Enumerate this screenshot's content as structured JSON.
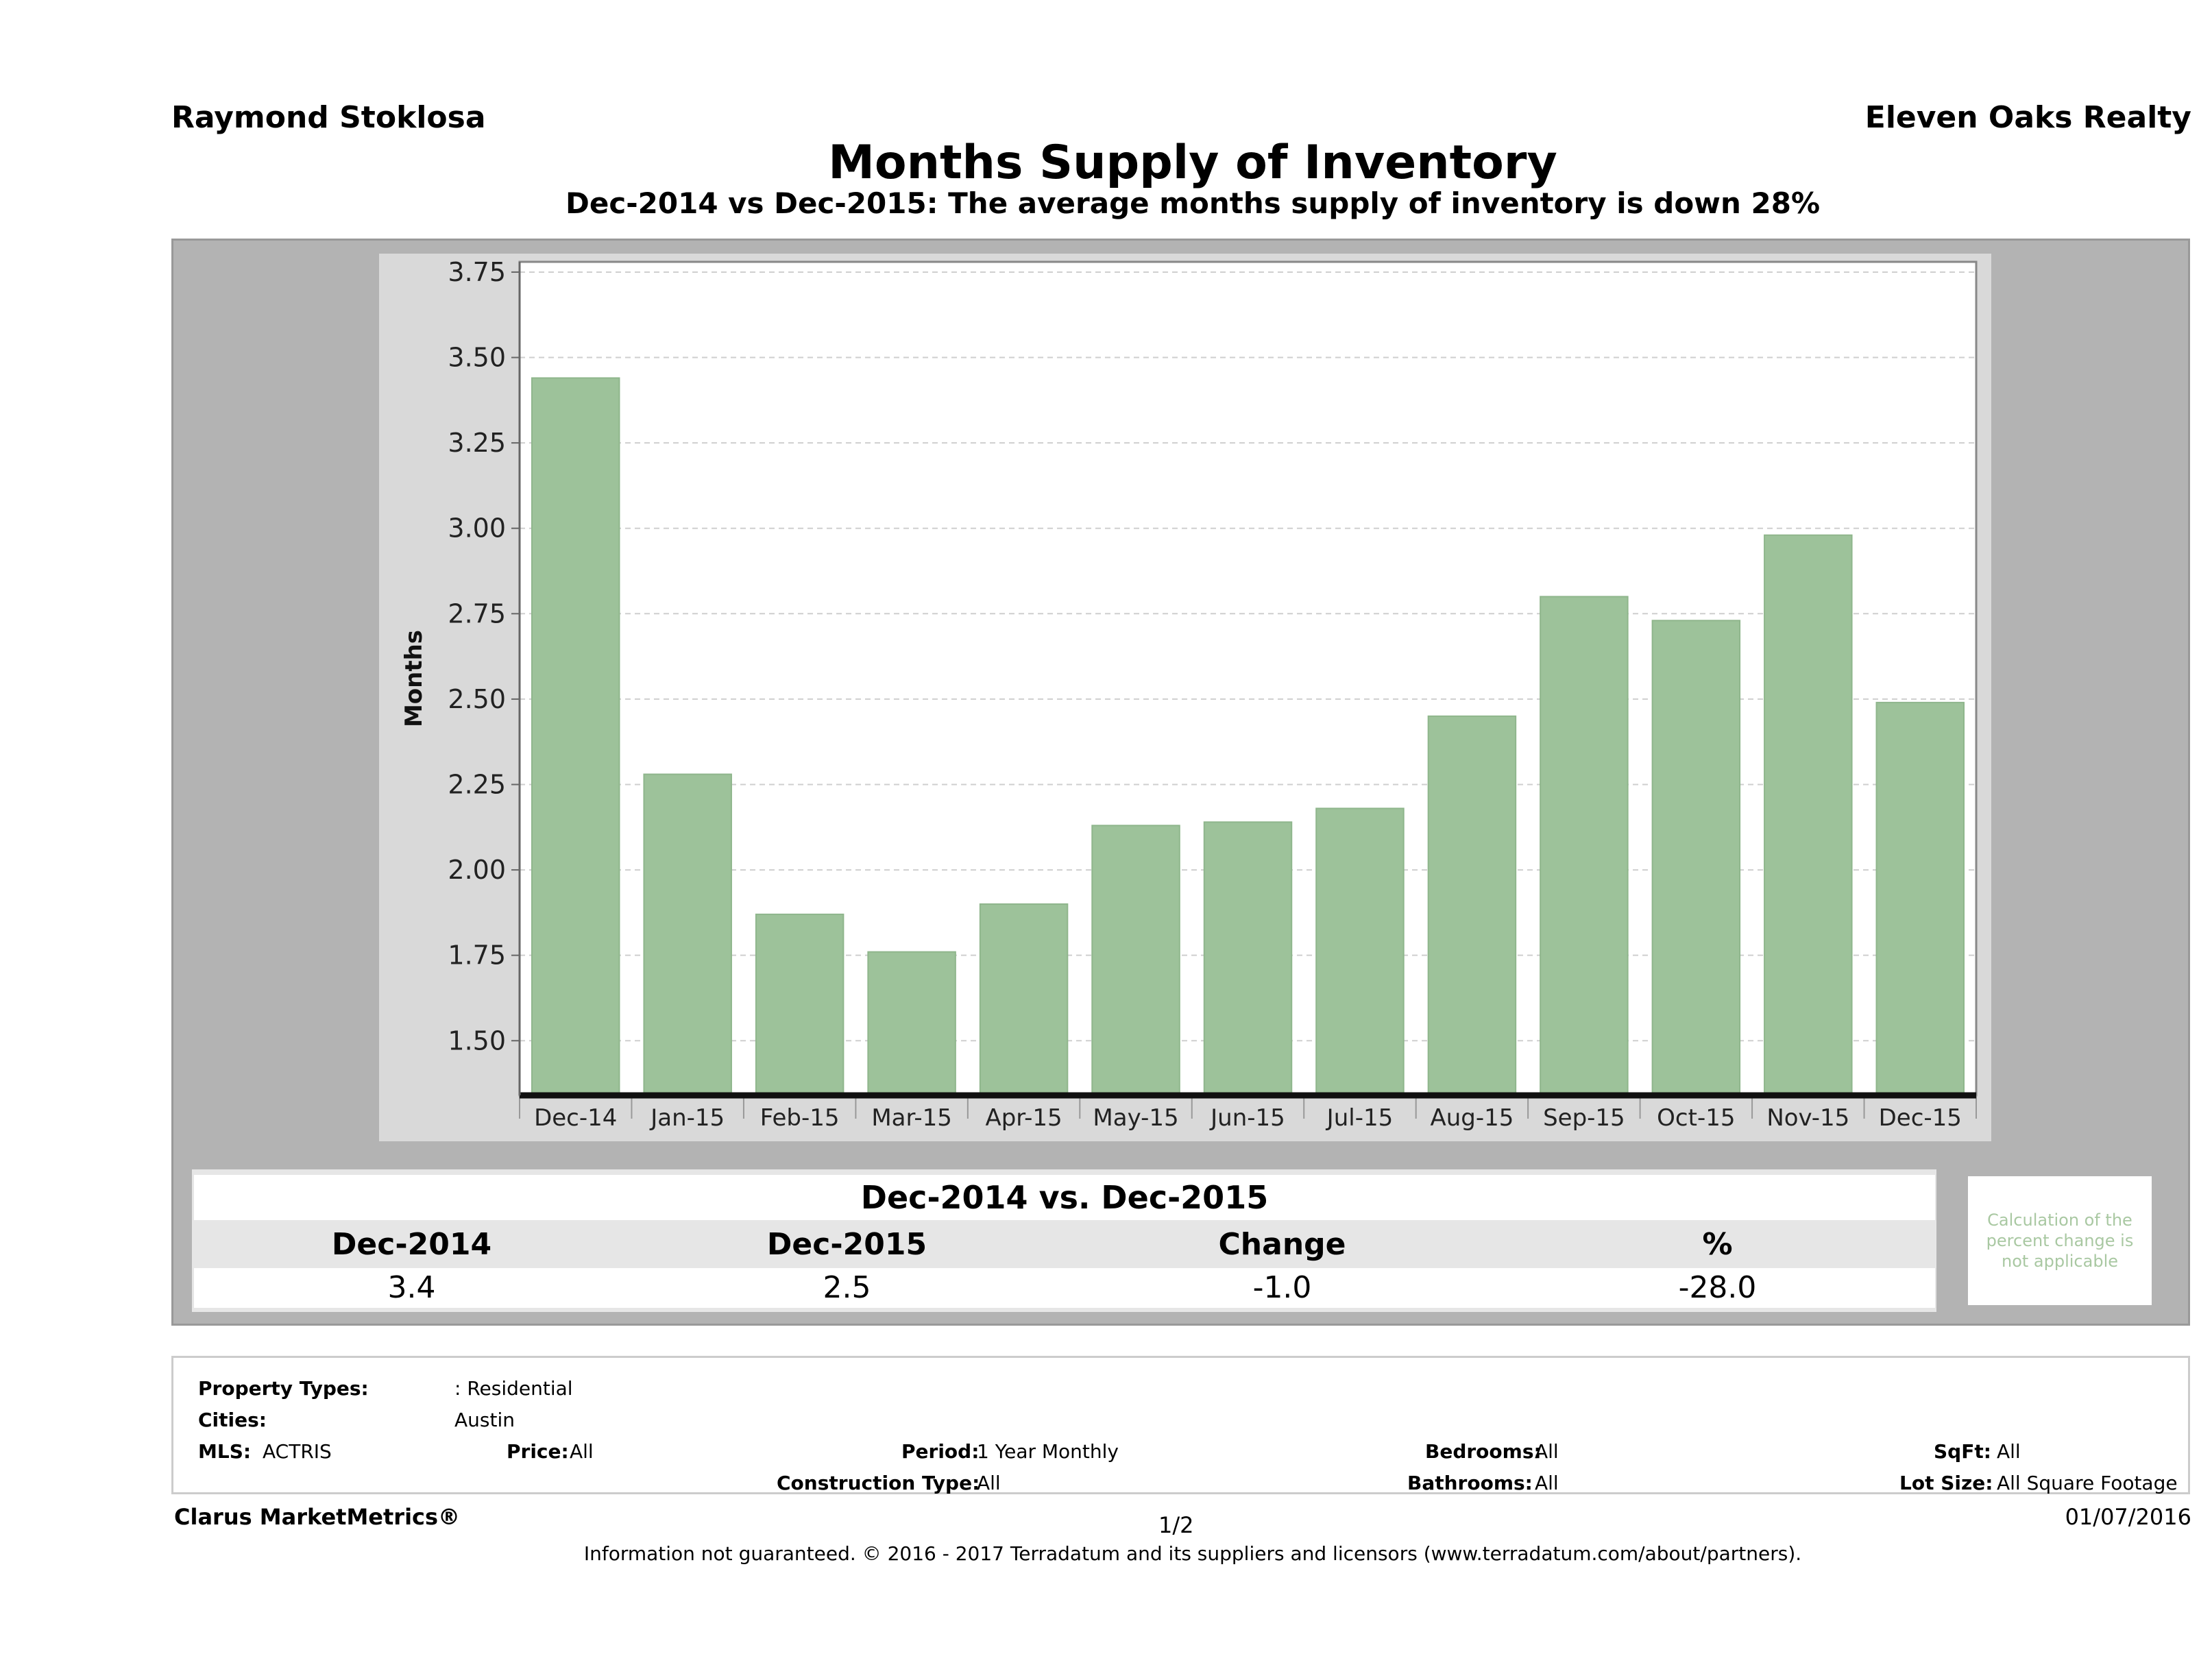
{
  "header": {
    "agent": "Raymond Stoklosa",
    "company": "Eleven Oaks Realty",
    "title": "Months Supply of Inventory",
    "subtitle": "Dec-2014 vs Dec-2015: The average months supply of inventory is down 28%"
  },
  "chart_data": {
    "type": "bar",
    "categories": [
      "Dec-14",
      "Jan-15",
      "Feb-15",
      "Mar-15",
      "Apr-15",
      "May-15",
      "Jun-15",
      "Jul-15",
      "Aug-15",
      "Sep-15",
      "Oct-15",
      "Nov-15",
      "Dec-15"
    ],
    "values": [
      3.44,
      2.28,
      1.87,
      1.76,
      1.9,
      2.13,
      2.14,
      2.18,
      2.45,
      2.8,
      2.73,
      2.98,
      2.49
    ],
    "ylabel": "Months",
    "ylim": [
      1.34,
      3.78
    ],
    "yticks": [
      "1.50",
      "1.75",
      "2.00",
      "2.25",
      "2.50",
      "2.75",
      "3.00",
      "3.25",
      "3.50",
      "3.75"
    ],
    "grid": true,
    "bar_color": "#9dc29a"
  },
  "summary": {
    "title": "Dec-2014 vs. Dec-2015",
    "headers": [
      "Dec-2014",
      "Dec-2015",
      "Change",
      "%"
    ],
    "values": [
      "3.4",
      "2.5",
      "-1.0",
      "-28.0"
    ],
    "note": "Calculation of the percent change is not applicable"
  },
  "info": {
    "property_types_label": "Property Types:",
    "property_types_value": ": Residential",
    "cities_label": "Cities:",
    "cities_value": "Austin",
    "mls_label": "MLS:",
    "mls_value": "ACTRIS",
    "price_label": "Price:",
    "price_value": "All",
    "period_label": "Period:",
    "period_value": "1 Year Monthly",
    "construction_label": "Construction Type:",
    "construction_value": "All",
    "bedrooms_label": "Bedrooms:",
    "bedrooms_value": "All",
    "bathrooms_label": "Bathrooms:",
    "bathrooms_value": "All",
    "sqft_label": "SqFt:",
    "sqft_value": "All",
    "lot_label": "Lot Size:",
    "lot_value": "All Square Footage"
  },
  "footer": {
    "brand": "Clarus MarketMetrics®",
    "page": "1/2",
    "date": "01/07/2016",
    "disclaimer": "Information not guaranteed. © 2016 - 2017 Terradatum and its suppliers and licensors (www.terradatum.com/about/partners)."
  }
}
